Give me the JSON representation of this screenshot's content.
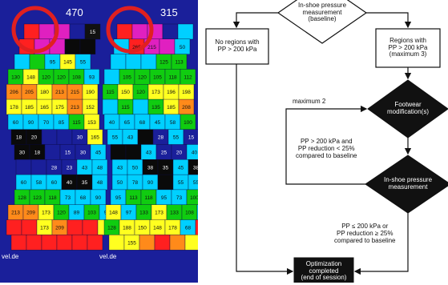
{
  "pressure_maps": {
    "left_foot": {
      "peak_value": "470",
      "rows": [
        [
          {
            "v": "",
            "c": "#ff2020"
          },
          {
            "v": "",
            "c": "#e020c0"
          },
          {
            "v": "",
            "c": "#e020c0"
          },
          {
            "v": "",
            "c": "#1a1f9a"
          },
          {
            "v": "15",
            "c": "#111111"
          }
        ],
        [
          {
            "v": "",
            "c": "#ff2020"
          },
          {
            "v": "",
            "c": "#e020c0"
          },
          {
            "v": "",
            "c": "#e020c0"
          },
          {
            "v": "",
            "c": "#0a0a0a"
          },
          {
            "v": "",
            "c": "#0a0a0a"
          }
        ],
        [
          {
            "v": "",
            "c": "#00d0ff"
          },
          {
            "v": "",
            "c": "#10cc10"
          },
          {
            "v": "95",
            "c": "#00d0ff"
          },
          {
            "v": "145",
            "c": "#ffff20"
          },
          {
            "v": "55",
            "c": "#00d0ff"
          }
        ],
        [
          {
            "v": "130",
            "c": "#10cc10"
          },
          {
            "v": "148",
            "c": "#ffff20"
          },
          {
            "v": "120",
            "c": "#10cc10"
          },
          {
            "v": "120",
            "c": "#10cc10"
          },
          {
            "v": "108",
            "c": "#10cc10"
          },
          {
            "v": "93",
            "c": "#00d0ff"
          }
        ],
        [
          {
            "v": "206",
            "c": "#ff8a1a"
          },
          {
            "v": "205",
            "c": "#ff8a1a"
          },
          {
            "v": "180",
            "c": "#ffff20"
          },
          {
            "v": "213",
            "c": "#ff8a1a"
          },
          {
            "v": "215",
            "c": "#ff8a1a"
          },
          {
            "v": "190",
            "c": "#ffff20"
          }
        ],
        [
          {
            "v": "178",
            "c": "#ffff20"
          },
          {
            "v": "185",
            "c": "#ffff20"
          },
          {
            "v": "165",
            "c": "#ffff20"
          },
          {
            "v": "175",
            "c": "#ffff20"
          },
          {
            "v": "213",
            "c": "#ff8a1a"
          },
          {
            "v": "152",
            "c": "#ffff20"
          }
        ],
        [
          {
            "v": "60",
            "c": "#00d0ff"
          },
          {
            "v": "90",
            "c": "#00d0ff"
          },
          {
            "v": "70",
            "c": "#00d0ff"
          },
          {
            "v": "85",
            "c": "#00d0ff"
          },
          {
            "v": "115",
            "c": "#10cc10"
          },
          {
            "v": "153",
            "c": "#ffff20"
          }
        ],
        [
          {
            "v": "18",
            "c": "#0a0a0a"
          },
          {
            "v": "20",
            "c": "#0a0a0a"
          },
          {
            "v": "",
            "c": "#1a1f9a"
          },
          {
            "v": "",
            "c": "#1a1f9a"
          },
          {
            "v": "30",
            "c": "#1a1f9a"
          },
          {
            "v": "165",
            "c": "#ffff20"
          }
        ],
        [
          {
            "v": "30",
            "c": "#0a0a0a"
          },
          {
            "v": "18",
            "c": "#0a0a0a"
          },
          {
            "v": "",
            "c": "#1a1f9a"
          },
          {
            "v": "15",
            "c": "#1a1f9a"
          },
          {
            "v": "30",
            "c": "#1a1f9a"
          },
          {
            "v": "45",
            "c": "#00d0ff"
          }
        ],
        [
          {
            "v": "",
            "c": "#1a1f9a"
          },
          {
            "v": "",
            "c": "#1a1f9a"
          },
          {
            "v": "28",
            "c": "#1a1f9a"
          },
          {
            "v": "23",
            "c": "#1a1f9a"
          },
          {
            "v": "43",
            "c": "#00d0ff"
          },
          {
            "v": "48",
            "c": "#00d0ff"
          }
        ],
        [
          {
            "v": "60",
            "c": "#00d0ff"
          },
          {
            "v": "58",
            "c": "#00d0ff"
          },
          {
            "v": "60",
            "c": "#00d0ff"
          },
          {
            "v": "40",
            "c": "#0a0a0a"
          },
          {
            "v": "35",
            "c": "#0a0a0a"
          },
          {
            "v": "48",
            "c": "#00d0ff"
          }
        ],
        [
          {
            "v": "128",
            "c": "#10cc10"
          },
          {
            "v": "123",
            "c": "#10cc10"
          },
          {
            "v": "118",
            "c": "#10cc10"
          },
          {
            "v": "73",
            "c": "#00d0ff"
          },
          {
            "v": "68",
            "c": "#00d0ff"
          },
          {
            "v": "90",
            "c": "#00d0ff"
          }
        ],
        [
          {
            "v": "213",
            "c": "#ff8a1a"
          },
          {
            "v": "209",
            "c": "#ff8a1a"
          },
          {
            "v": "173",
            "c": "#ffff20"
          },
          {
            "v": "120",
            "c": "#10cc10"
          },
          {
            "v": "89",
            "c": "#00d0ff"
          },
          {
            "v": "103",
            "c": "#10cc10"
          },
          {
            "v": "95",
            "c": "#00d0ff"
          }
        ],
        [
          {
            "v": "",
            "c": "#ff2020"
          },
          {
            "v": "",
            "c": "#ff2020"
          },
          {
            "v": "173",
            "c": "#ffff20"
          },
          {
            "v": "209",
            "c": "#ff8a1a"
          },
          {
            "v": "",
            "c": "#ff2020"
          },
          {
            "v": "",
            "c": "#ff2020"
          },
          {
            "v": "9",
            "c": "#ffff20"
          }
        ],
        [
          {
            "v": "",
            "c": "#ff2020"
          },
          {
            "v": "",
            "c": "#ff2020"
          },
          {
            "v": "",
            "c": "#ff2020"
          },
          {
            "v": "",
            "c": "#ff2020"
          },
          {
            "v": "",
            "c": "#ff2020"
          },
          {
            "v": "",
            "c": "#ff2020"
          }
        ]
      ]
    },
    "right_foot": {
      "peak_value": "315",
      "rows": [
        [
          {
            "v": "",
            "c": "#ff2020"
          },
          {
            "v": "",
            "c": "#e020c0"
          },
          {
            "v": "",
            "c": "#e020c0"
          },
          {
            "v": "",
            "c": "#1a1f9a"
          },
          {
            "v": "",
            "c": "#00d0ff"
          }
        ],
        [
          {
            "v": "",
            "c": "#00d0ff"
          },
          {
            "v": "265",
            "c": "#ff2020"
          },
          {
            "v": "215",
            "c": "#e020c0"
          },
          {
            "v": "",
            "c": "#e020c0"
          },
          {
            "v": "50",
            "c": "#00d0ff"
          }
        ],
        [
          {
            "v": "",
            "c": "#00d0ff"
          },
          {
            "v": "",
            "c": "#00d0ff"
          },
          {
            "v": "",
            "c": "#00d0ff"
          },
          {
            "v": "125",
            "c": "#10cc10"
          },
          {
            "v": "113",
            "c": "#10cc10"
          }
        ],
        [
          {
            "v": "",
            "c": "#00d0ff"
          },
          {
            "v": "105",
            "c": "#10cc10"
          },
          {
            "v": "120",
            "c": "#10cc10"
          },
          {
            "v": "105",
            "c": "#10cc10"
          },
          {
            "v": "118",
            "c": "#10cc10"
          },
          {
            "v": "112",
            "c": "#10cc10"
          }
        ],
        [
          {
            "v": "115",
            "c": "#10cc10"
          },
          {
            "v": "150",
            "c": "#ffff20"
          },
          {
            "v": "120",
            "c": "#10cc10"
          },
          {
            "v": "173",
            "c": "#ffff20"
          },
          {
            "v": "196",
            "c": "#ffff20"
          },
          {
            "v": "198",
            "c": "#ffff20"
          }
        ],
        [
          {
            "v": "",
            "c": "#00d0ff"
          },
          {
            "v": "115",
            "c": "#10cc10"
          },
          {
            "v": "",
            "c": "#00d0ff"
          },
          {
            "v": "135",
            "c": "#10cc10"
          },
          {
            "v": "185",
            "c": "#ffff20"
          },
          {
            "v": "208",
            "c": "#ff8a1a"
          }
        ],
        [
          {
            "v": "40",
            "c": "#00d0ff"
          },
          {
            "v": "65",
            "c": "#00d0ff"
          },
          {
            "v": "68",
            "c": "#00d0ff"
          },
          {
            "v": "45",
            "c": "#00d0ff"
          },
          {
            "v": "58",
            "c": "#00d0ff"
          },
          {
            "v": "100",
            "c": "#10cc10"
          }
        ],
        [
          {
            "v": "55",
            "c": "#00d0ff"
          },
          {
            "v": "43",
            "c": "#00d0ff"
          },
          {
            "v": "",
            "c": "#0a0a0a"
          },
          {
            "v": "28",
            "c": "#1a1f9a"
          },
          {
            "v": "55",
            "c": "#00d0ff"
          },
          {
            "v": "15",
            "c": "#1a1f9a"
          }
        ],
        [
          {
            "v": "",
            "c": "#0a0a0a"
          },
          {
            "v": "",
            "c": "#0a0a0a"
          },
          {
            "v": "43",
            "c": "#00d0ff"
          },
          {
            "v": "25",
            "c": "#1a1f9a"
          },
          {
            "v": "20",
            "c": "#1a1f9a"
          },
          {
            "v": "40",
            "c": "#00d0ff"
          }
        ],
        [
          {
            "v": "43",
            "c": "#00d0ff"
          },
          {
            "v": "50",
            "c": "#00d0ff"
          },
          {
            "v": "38",
            "c": "#0a0a0a"
          },
          {
            "v": "35",
            "c": "#0a0a0a"
          },
          {
            "v": "45",
            "c": "#00d0ff"
          },
          {
            "v": "38",
            "c": "#0a0a0a"
          }
        ],
        [
          {
            "v": "50",
            "c": "#00d0ff"
          },
          {
            "v": "78",
            "c": "#00d0ff"
          },
          {
            "v": "90",
            "c": "#00d0ff"
          },
          {
            "v": "",
            "c": "#0a0a0a"
          },
          {
            "v": "55",
            "c": "#00d0ff"
          },
          {
            "v": "55",
            "c": "#00d0ff"
          }
        ],
        [
          {
            "v": "95",
            "c": "#00d0ff"
          },
          {
            "v": "113",
            "c": "#10cc10"
          },
          {
            "v": "118",
            "c": "#10cc10"
          },
          {
            "v": "95",
            "c": "#00d0ff"
          },
          {
            "v": "73",
            "c": "#00d0ff"
          },
          {
            "v": "100",
            "c": "#10cc10"
          }
        ],
        [
          {
            "v": "148",
            "c": "#ffff20"
          },
          {
            "v": "97",
            "c": "#00d0ff"
          },
          {
            "v": "133",
            "c": "#10cc10"
          },
          {
            "v": "173",
            "c": "#ffff20"
          },
          {
            "v": "133",
            "c": "#10cc10"
          },
          {
            "v": "108",
            "c": "#10cc10"
          },
          {
            "v": "60",
            "c": "#00d0ff"
          }
        ],
        [
          {
            "v": "128",
            "c": "#10cc10"
          },
          {
            "v": "188",
            "c": "#ffff20"
          },
          {
            "v": "150",
            "c": "#ffff20"
          },
          {
            "v": "148",
            "c": "#ffff20"
          },
          {
            "v": "178",
            "c": "#ffff20"
          },
          {
            "v": "68",
            "c": "#00d0ff"
          },
          {
            "v": "",
            "c": "#ff2020"
          }
        ],
        [
          {
            "v": "",
            "c": "#ffff20"
          },
          {
            "v": "155",
            "c": "#ffff20"
          },
          {
            "v": "",
            "c": "#ff8a1a"
          },
          {
            "v": "",
            "c": "#ff2020"
          },
          {
            "v": "",
            "c": "#ff8a1a"
          },
          {
            "v": "",
            "c": "#ffff20"
          }
        ]
      ]
    },
    "watermark_left": "vel.de",
    "watermark_right": "vel.de",
    "highlight_color": "#e02020"
  },
  "flowchart": {
    "nodes": {
      "baseline": "In-shoe pressure\nmeasurement\n(baseline)",
      "no_regions": "No regions with\nPP > 200 kPa",
      "regions": "Regions with\nPP > 200 kPa\n(maximum 3)",
      "footwear": "Footwear\nmodification(s)",
      "measurement": "In-shoe pressure\nmeasurement",
      "completed": "Optimization\ncompleted\n(end of session)"
    },
    "edges": {
      "max2": "maximum 2",
      "condition_reduce": "PP > 200 kPa and\nPP reduction < 25%\ncompared to baseline",
      "condition_done": "PP ≤ 200 kPa or\nPP reduction ≥ 25%\ncompared  to baseline"
    }
  }
}
